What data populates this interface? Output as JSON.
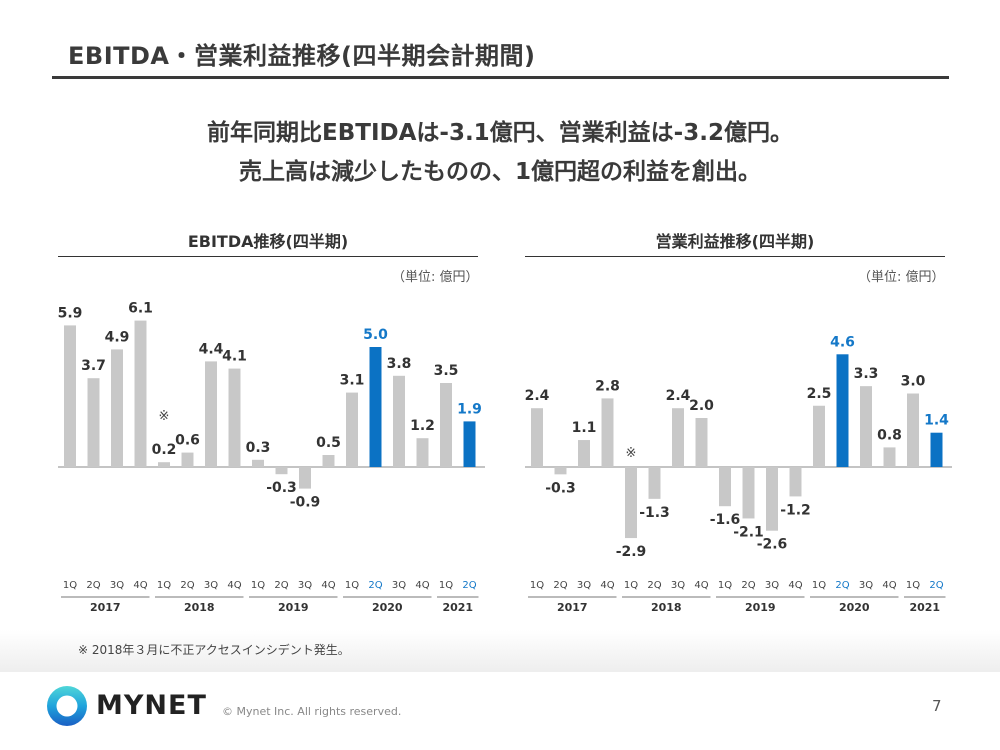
{
  "page": {
    "title": "EBITDA・営業利益推移(四半期会計期間)",
    "headline_line1": "前年同期比EBTIDAは-3.1億円、営業利益は-3.2億円。",
    "headline_line2": "売上高は減少したものの、1億円超の利益を創出。",
    "footnote": "※ 2018年３月に不正アクセスインシデント発生。",
    "logo_text": "MYNET",
    "copyright": "© Mynet Inc. All rights reserved.",
    "page_number": "7"
  },
  "colors": {
    "bar_default": "#c8c8c8",
    "bar_highlight": "#0b72c4",
    "label_default": "#333333",
    "label_highlight": "#1478c8"
  },
  "chart_data": [
    {
      "type": "bar",
      "title": "EBITDA推移(四半期)",
      "unit_label": "（単位: 億円）",
      "xlabel": "",
      "ylabel": "億円",
      "categories": [
        "1Q",
        "2Q",
        "3Q",
        "4Q",
        "1Q",
        "2Q",
        "3Q",
        "4Q",
        "1Q",
        "2Q",
        "3Q",
        "4Q",
        "1Q",
        "2Q",
        "3Q",
        "4Q",
        "1Q",
        "2Q"
      ],
      "year_groups": [
        {
          "label": "2017",
          "count": 4
        },
        {
          "label": "2018",
          "count": 4
        },
        {
          "label": "2019",
          "count": 4
        },
        {
          "label": "2020",
          "count": 4
        },
        {
          "label": "2021",
          "count": 2
        }
      ],
      "values": [
        5.9,
        3.7,
        4.9,
        6.1,
        0.2,
        0.6,
        4.4,
        4.1,
        0.3,
        -0.3,
        -0.9,
        0.5,
        3.1,
        5.0,
        3.8,
        1.2,
        3.5,
        1.9
      ],
      "highlight_indices": [
        13,
        17
      ],
      "annotation": {
        "text": "※",
        "index": 4
      },
      "ylim": [
        -3.2,
        6.5
      ]
    },
    {
      "type": "bar",
      "title": "営業利益推移(四半期)",
      "unit_label": "（単位: 億円）",
      "xlabel": "",
      "ylabel": "億円",
      "categories": [
        "1Q",
        "2Q",
        "3Q",
        "4Q",
        "1Q",
        "2Q",
        "3Q",
        "4Q",
        "1Q",
        "2Q",
        "3Q",
        "4Q",
        "1Q",
        "2Q",
        "3Q",
        "4Q",
        "1Q",
        "2Q"
      ],
      "year_groups": [
        {
          "label": "2017",
          "count": 4
        },
        {
          "label": "2018",
          "count": 4
        },
        {
          "label": "2019",
          "count": 4
        },
        {
          "label": "2020",
          "count": 4
        },
        {
          "label": "2021",
          "count": 2
        }
      ],
      "values": [
        2.4,
        -0.3,
        1.1,
        2.8,
        -2.9,
        -1.3,
        2.4,
        2.0,
        -1.6,
        -2.1,
        -2.6,
        -1.2,
        2.5,
        4.6,
        3.3,
        0.8,
        3.0,
        1.4
      ],
      "highlight_indices": [
        13,
        17
      ],
      "annotation": {
        "text": "※",
        "index": 4
      },
      "ylim": [
        -5.0,
        5.0
      ]
    }
  ]
}
